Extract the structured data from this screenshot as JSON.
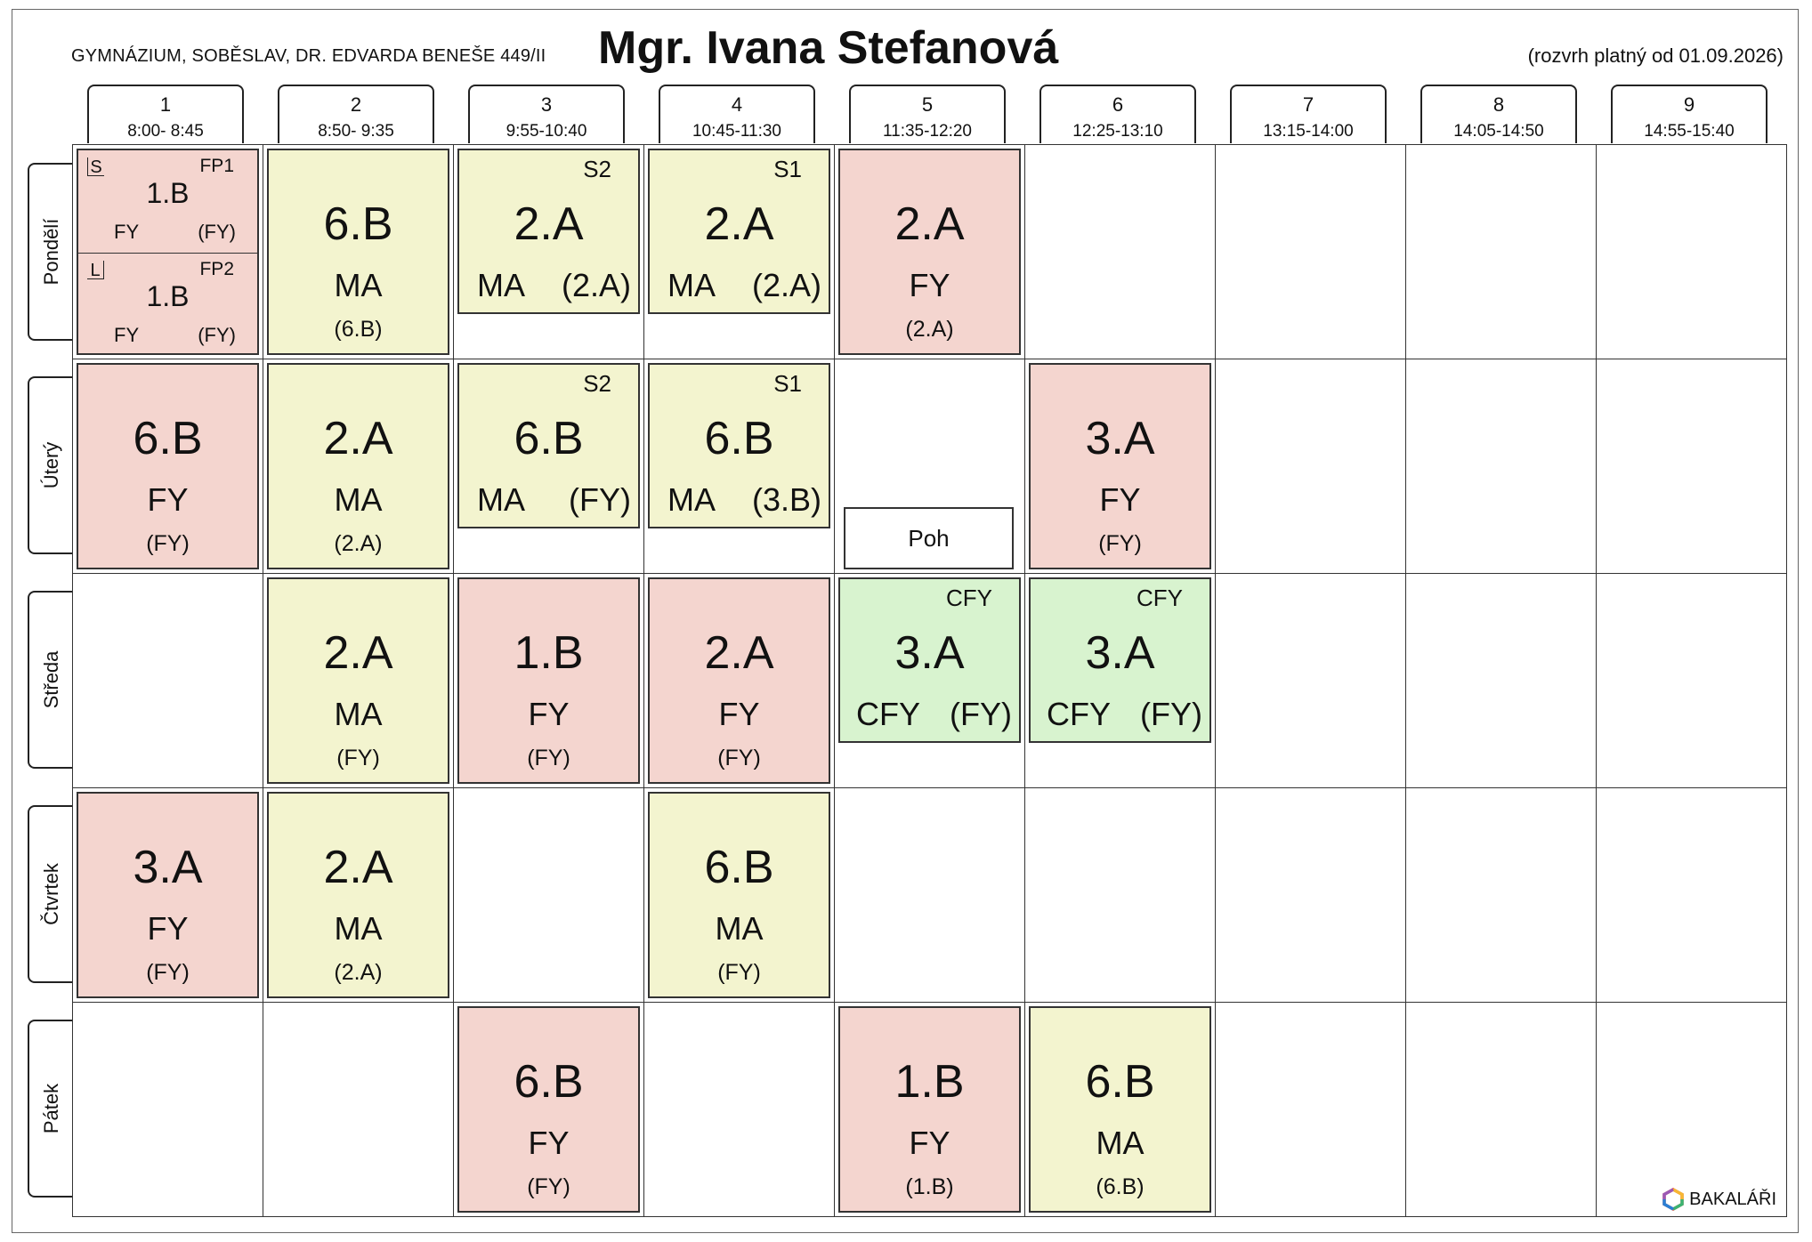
{
  "header": {
    "school": "GYMNÁZIUM, SOBĚSLAV, DR. EDVARDA BENEŠE 449/II",
    "teacher": "Mgr. Ivana Stefanová",
    "valid": "(rozvrh platný od 01.09.2026)"
  },
  "periods": [
    {
      "num": "1",
      "time": "8:00- 8:45"
    },
    {
      "num": "2",
      "time": "8:50- 9:35"
    },
    {
      "num": "3",
      "time": "9:55-10:40"
    },
    {
      "num": "4",
      "time": "10:45-11:30"
    },
    {
      "num": "5",
      "time": "11:35-12:20"
    },
    {
      "num": "6",
      "time": "12:25-13:10"
    },
    {
      "num": "7",
      "time": "13:15-14:00"
    },
    {
      "num": "8",
      "time": "14:05-14:50"
    },
    {
      "num": "9",
      "time": "14:55-15:40"
    }
  ],
  "days": [
    "Pondělí",
    "Úterý",
    "Středa",
    "Čtvrtek",
    "Pátek"
  ],
  "monday": {
    "p1": {
      "s": {
        "mark": "S",
        "group": "FP1",
        "cls": "1.B",
        "subject": "FY",
        "room": "(FY)"
      },
      "l": {
        "mark": "L",
        "group": "FP2",
        "cls": "1.B",
        "subject": "FY",
        "room": "(FY)"
      }
    },
    "p2": {
      "cls": "6.B",
      "subject": "MA",
      "room": "(6.B)"
    },
    "p3": {
      "group": "S2",
      "cls": "2.A",
      "subject": "MA",
      "room": "(2.A)"
    },
    "p4": {
      "group": "S1",
      "cls": "2.A",
      "subject": "MA",
      "room": "(2.A)"
    },
    "p5": {
      "cls": "2.A",
      "subject": "FY",
      "room": "(2.A)"
    }
  },
  "tuesday": {
    "p1": {
      "cls": "6.B",
      "subject": "FY",
      "room": "(FY)"
    },
    "p2": {
      "cls": "2.A",
      "subject": "MA",
      "room": "(2.A)"
    },
    "p3": {
      "group": "S2",
      "cls": "6.B",
      "subject": "MA",
      "room": "(FY)"
    },
    "p4": {
      "group": "S1",
      "cls": "6.B",
      "subject": "MA",
      "room": "(3.B)"
    },
    "p5_duty": "Poh",
    "p6": {
      "cls": "3.A",
      "subject": "FY",
      "room": "(FY)"
    }
  },
  "wednesday": {
    "p2": {
      "cls": "2.A",
      "subject": "MA",
      "room": "(FY)"
    },
    "p3": {
      "cls": "1.B",
      "subject": "FY",
      "room": "(FY)"
    },
    "p4": {
      "cls": "2.A",
      "subject": "FY",
      "room": "(FY)"
    },
    "p5": {
      "group": "CFY",
      "cls": "3.A",
      "subject": "CFY",
      "room": "(FY)"
    },
    "p6": {
      "group": "CFY",
      "cls": "3.A",
      "subject": "CFY",
      "room": "(FY)"
    }
  },
  "thursday": {
    "p1": {
      "cls": "3.A",
      "subject": "FY",
      "room": "(FY)"
    },
    "p2": {
      "cls": "2.A",
      "subject": "MA",
      "room": "(2.A)"
    },
    "p4": {
      "cls": "6.B",
      "subject": "MA",
      "room": "(FY)"
    }
  },
  "friday": {
    "p3": {
      "cls": "6.B",
      "subject": "FY",
      "room": "(FY)"
    },
    "p5": {
      "cls": "1.B",
      "subject": "FY",
      "room": "(1.B)"
    },
    "p6": {
      "cls": "6.B",
      "subject": "MA",
      "room": "(6.B)"
    }
  },
  "logo": "BAKALÁŘI",
  "colors": {
    "physics": "#f4d5cf",
    "math": "#f3f4cf",
    "seminar": "#d8f3cf"
  }
}
